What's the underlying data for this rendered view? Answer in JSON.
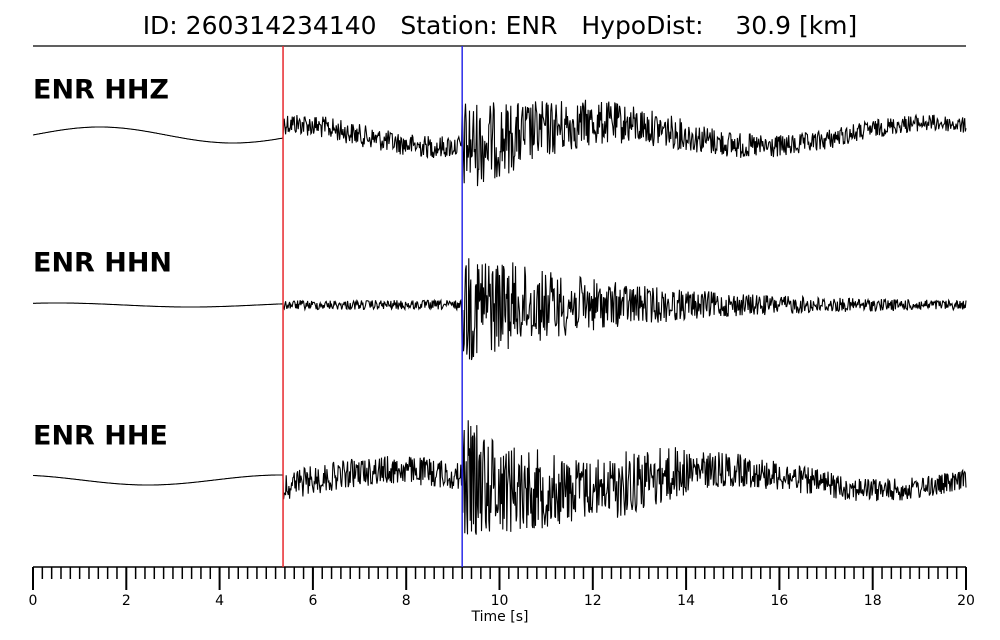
{
  "chart_data": {
    "type": "seismogram",
    "title": "ID: 260314234140   Station: ENR   HypoDist:    30.9 [km]",
    "xlabel": "Time [s]",
    "xlim": [
      0,
      20
    ],
    "xticks": [
      0,
      2,
      4,
      6,
      8,
      10,
      12,
      14,
      16,
      18,
      20
    ],
    "xminor_step": 0.2,
    "traces": [
      {
        "label": "ENR HHZ"
      },
      {
        "label": "ENR HHN"
      },
      {
        "label": "ENR HHE"
      }
    ],
    "label_color": "#4c9a00",
    "vlines": [
      {
        "x": 5.36,
        "color": "#e8282d"
      },
      {
        "x": 9.2,
        "color": "#2a2ae8"
      }
    ]
  }
}
